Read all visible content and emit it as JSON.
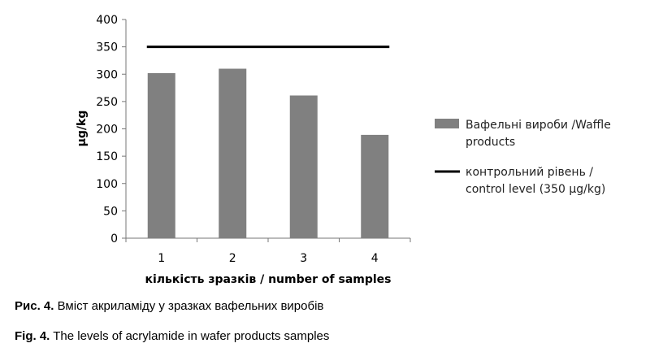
{
  "chart_data": {
    "type": "bar",
    "categories": [
      "1",
      "2",
      "3",
      "4"
    ],
    "series": [
      {
        "name": "Вафельні вироби /Waffle products",
        "values": [
          302,
          310,
          261,
          189
        ],
        "color": "#808080"
      }
    ],
    "reference_line": {
      "name": "контрольний рівень / control level (350 μg/kg)",
      "value": 350,
      "color": "#000000"
    },
    "xlabel": "кількість зразків / number of samples",
    "ylabel": "μg/kg",
    "ylim": [
      0,
      400
    ],
    "yticks": [
      0,
      50,
      100,
      150,
      200,
      250,
      300,
      350,
      400
    ],
    "grid": false,
    "legend_position": "right",
    "legend": {
      "bar_lines": [
        "Вафельні вироби /Waffle",
        "products"
      ],
      "line_lines": [
        "контрольний рівень /",
        "control level (350 μg/kg)"
      ]
    }
  },
  "captions": {
    "fig_ua_prefix": "Рис. 4.",
    "fig_ua_text": " Вміст акриламіду у зразках вафельних виробів",
    "fig_en_prefix": "Fig. 4.",
    "fig_en_text": " The levels of acrylamide in wafer products samples"
  }
}
